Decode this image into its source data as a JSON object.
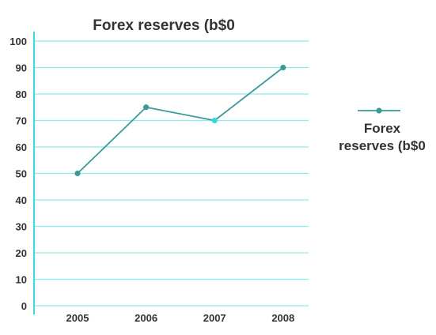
{
  "chart_data": {
    "type": "line",
    "title": "Forex reserves (b$0",
    "xlabel": "",
    "ylabel": "",
    "categories": [
      "2005",
      "2006",
      "2007",
      "2008"
    ],
    "series": [
      {
        "name": "Forex reserves (b$0",
        "values": [
          50,
          75,
          70,
          90
        ],
        "color": "#3a9a9a"
      }
    ],
    "ylim": [
      0,
      100
    ],
    "yticks": [
      "0",
      "10",
      "20",
      "30",
      "40",
      "50",
      "60",
      "70",
      "80",
      "90",
      "100"
    ],
    "grid": true,
    "legend": {
      "position": "right",
      "label_lines": [
        "Forex",
        "reserves (b$0"
      ]
    },
    "colors": {
      "gridline": "#8eeaea",
      "axis": "#3ad8e6",
      "line": "#3a9a9a",
      "highlight_marker": "#35d6e0",
      "text": "#333333"
    },
    "highlighted_point_index": 2
  }
}
